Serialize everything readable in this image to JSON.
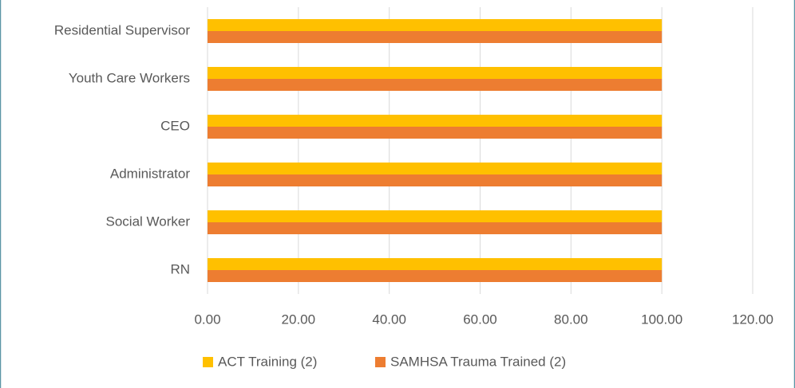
{
  "chart_data": {
    "type": "hbar",
    "categories": [
      "Residential Supervisor",
      "Youth Care Workers",
      "CEO",
      "Administrator ",
      "Social Worker",
      "RN"
    ],
    "series": [
      {
        "name": "ACT Training (2)",
        "color": "#ffc000",
        "values": [
          100,
          100,
          100,
          100,
          100,
          100
        ]
      },
      {
        "name": "SAMHSA Trauma Trained (2)",
        "color": "#ed7d31",
        "values": [
          100,
          100,
          100,
          100,
          100,
          100
        ]
      }
    ],
    "xlim": [
      0,
      120
    ],
    "xticks": [
      {
        "value": 0,
        "label": "0.00"
      },
      {
        "value": 20,
        "label": "20.00"
      },
      {
        "value": 40,
        "label": "40.00"
      },
      {
        "value": 60,
        "label": "60.00"
      },
      {
        "value": 80,
        "label": "80.00"
      },
      {
        "value": 100,
        "label": "100.00"
      },
      {
        "value": 120,
        "label": "120.00"
      }
    ],
    "grid": true,
    "legend": "bottom"
  }
}
